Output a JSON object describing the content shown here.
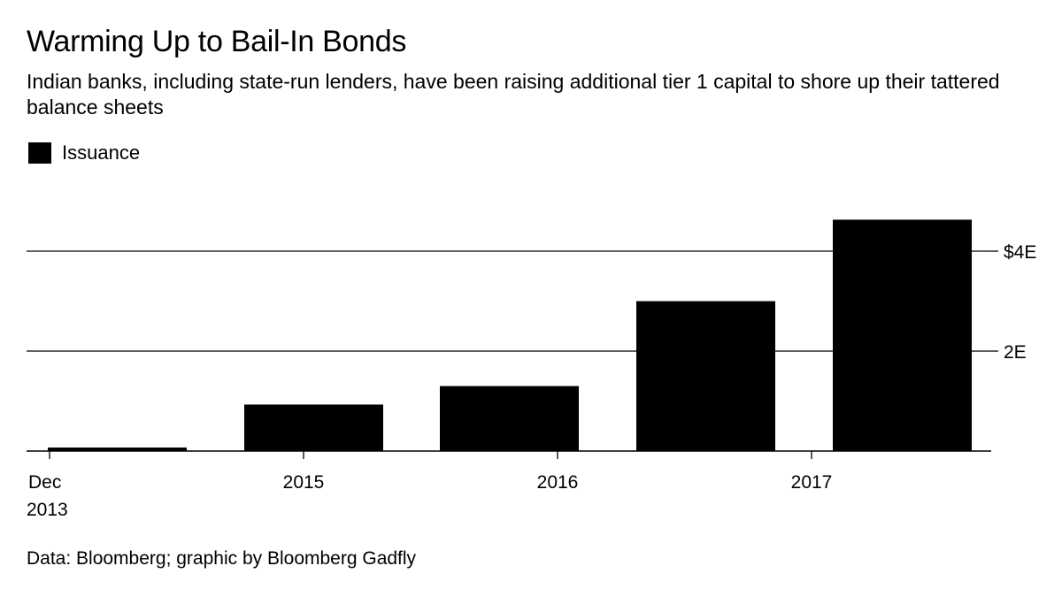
{
  "chart_data": {
    "type": "bar",
    "title": "Warming Up to Bail-In Bonds",
    "subtitle": "Indian banks, including state-run lenders, have been raising additional tier 1 capital to shore up their tattered balance sheets",
    "series": [
      {
        "name": "Issuance",
        "color": "#000000",
        "values": [
          0.07,
          0.93,
          1.3,
          3.0,
          4.63
        ]
      }
    ],
    "categories": [
      "2013",
      "2015",
      "2016",
      "2017",
      "2017"
    ],
    "ylim": [
      0,
      4.6
    ],
    "y_ticks": [
      {
        "value": 2,
        "label": "2E"
      },
      {
        "value": 4,
        "label": "$4E"
      }
    ],
    "x_ticks": [
      {
        "label": "Dec",
        "label2": "2013"
      },
      {
        "label": "2015"
      },
      {
        "label": "2016"
      },
      {
        "label": "2017"
      }
    ],
    "y_axis_side": "right",
    "legend_position": "top-left",
    "grid": true
  },
  "source": "Data: Bloomberg; graphic by Bloomberg Gadfly"
}
